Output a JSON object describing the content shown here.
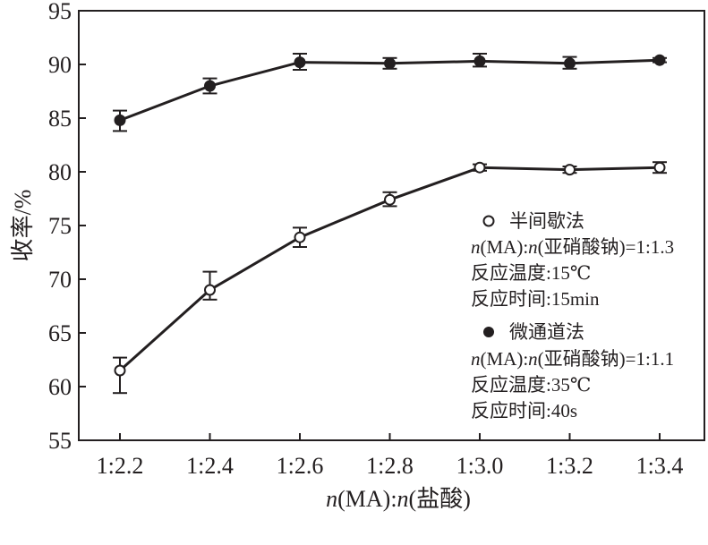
{
  "chart_data": {
    "type": "line",
    "title": "",
    "xlabel": "n(MA):n(盐酸)",
    "xlabel_parts": {
      "n1": "n",
      "mid": "(MA):",
      "n2": "n",
      "rest": "(盐酸)"
    },
    "ylabel": "收率/%",
    "categories": [
      "1:2.2",
      "1:2.4",
      "1:2.6",
      "1:2.8",
      "1:3.0",
      "1:3.2",
      "1:3.4"
    ],
    "ylim": [
      55,
      95
    ],
    "yticks": [
      55,
      60,
      65,
      70,
      75,
      80,
      85,
      90,
      95
    ],
    "grid": false,
    "series": [
      {
        "name": "微通道法",
        "marker": "filled-circle",
        "values": [
          84.8,
          88.0,
          90.2,
          90.1,
          90.3,
          90.1,
          90.4
        ],
        "err_low": [
          83.8,
          87.3,
          89.5,
          89.6,
          89.8,
          89.6,
          90.2
        ],
        "err_high": [
          85.7,
          88.7,
          91.0,
          90.6,
          91.0,
          90.7,
          90.6
        ]
      },
      {
        "name": "半间歇法",
        "marker": "open-circle",
        "values": [
          61.5,
          69.0,
          73.9,
          77.4,
          80.4,
          80.2,
          80.4
        ],
        "err_low": [
          59.4,
          68.1,
          73.0,
          76.8,
          80.1,
          79.9,
          79.9
        ],
        "err_high": [
          62.7,
          70.7,
          74.8,
          78.1,
          80.7,
          80.5,
          80.9
        ]
      }
    ],
    "legend": {
      "placement": "center-right",
      "groups": [
        {
          "symbol": "open-circle",
          "name": "半间歇法",
          "ratio_n1": "n",
          "ratio_mid": "(MA):",
          "ratio_n2": "n",
          "ratio_rest": "(亚硝酸钠)=1:1.3",
          "temp": "反应温度:15℃",
          "time": "反应时间:15min"
        },
        {
          "symbol": "filled-circle",
          "name": "微通道法",
          "ratio_n1": "n",
          "ratio_mid": "(MA):",
          "ratio_n2": "n",
          "ratio_rest": "(亚硝酸钠)=1:1.1",
          "temp": "反应温度:35℃",
          "time": "反应时间:40s"
        }
      ]
    }
  }
}
